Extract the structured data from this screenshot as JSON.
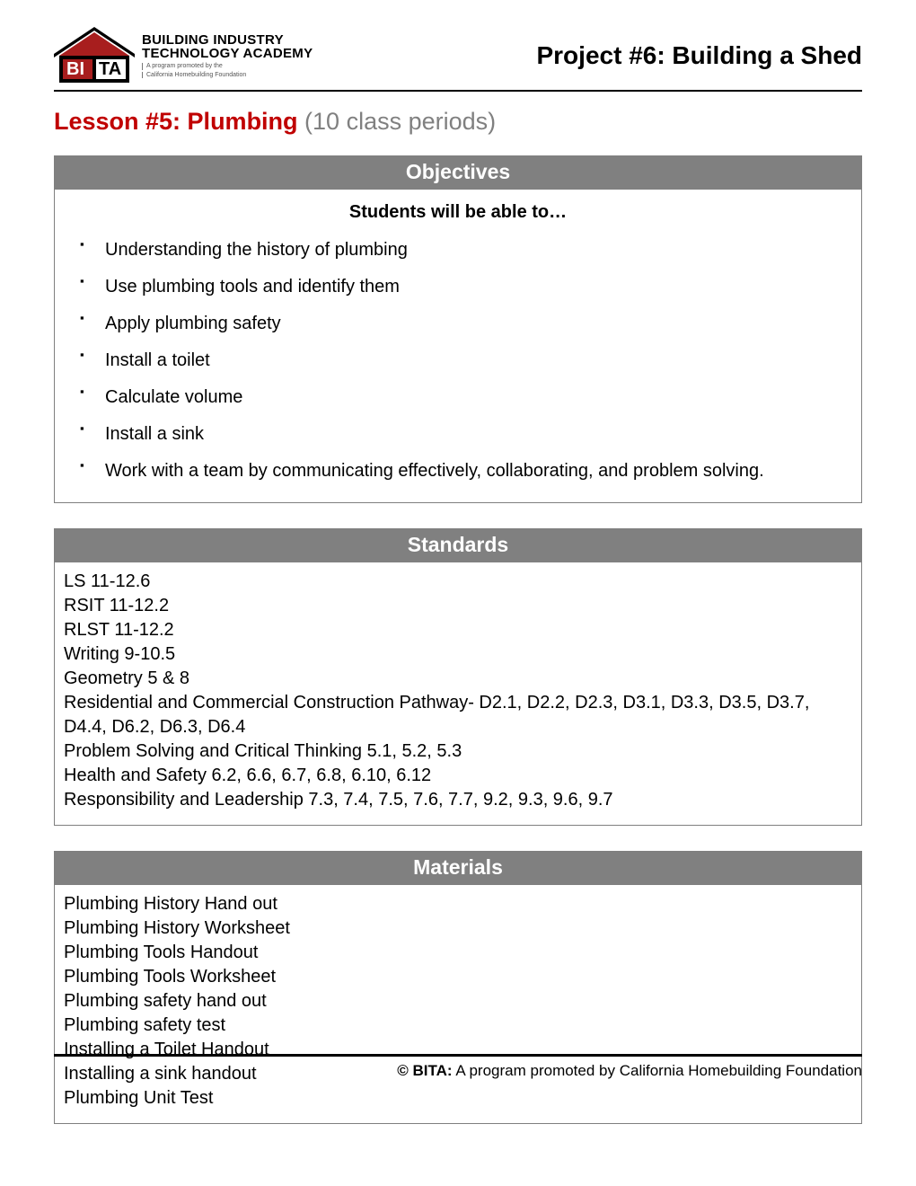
{
  "colors": {
    "accent_red": "#c00000",
    "header_gray": "#808080",
    "text_gray": "#808080",
    "border_gray": "#7f7f7f",
    "black": "#000000",
    "white": "#ffffff"
  },
  "typography": {
    "body_family": "Verdana",
    "heading_family": "Arial",
    "project_title_size": 28,
    "lesson_title_size": 27,
    "section_header_size": 23,
    "body_size": 20
  },
  "logo": {
    "line1": "BUILDING INDUSTRY",
    "line2": "TECHNOLOGY ACADEMY",
    "sub1": "A program promoted by the",
    "sub2": "California Homebuilding Foundation"
  },
  "header": {
    "project_title": "Project #6: Building a Shed"
  },
  "lesson": {
    "prefix": "Lesson #5: Plumbing",
    "suffix": " (10 class periods)"
  },
  "sections": {
    "objectives": {
      "title": "Objectives",
      "subhead": "Students will be able to…",
      "items": [
        "Understanding the history of plumbing",
        "Use plumbing tools and identify them",
        "Apply plumbing safety",
        "Install a toilet",
        "Calculate volume",
        "Install a sink",
        "Work with a team by communicating effectively, collaborating, and problem solving."
      ]
    },
    "standards": {
      "title": "Standards",
      "lines": [
        "LS 11-12.6",
        "RSIT 11-12.2",
        "RLST 11-12.2",
        "Writing 9-10.5",
        "Geometry 5 & 8",
        "Residential and Commercial Construction Pathway- D2.1, D2.2, D2.3, D3.1, D3.3, D3.5, D3.7, D4.4, D6.2, D6.3, D6.4",
        "Problem Solving and Critical Thinking 5.1, 5.2, 5.3",
        "Health and Safety 6.2, 6.6, 6.7, 6.8, 6.10, 6.12",
        "Responsibility and Leadership 7.3, 7.4, 7.5, 7.6, 7.7, 9.2, 9.3, 9.6, 9.7"
      ]
    },
    "materials": {
      "title": "Materials",
      "lines": [
        "Plumbing History Hand out",
        "Plumbing History Worksheet",
        "Plumbing Tools Handout",
        "Plumbing Tools Worksheet",
        "Plumbing safety hand out",
        "Plumbing safety test",
        "Installing a Toilet Handout",
        "Installing a sink handout",
        "Plumbing Unit Test"
      ]
    }
  },
  "footer": {
    "bold": "© BITA:",
    "rest": " A program promoted by California Homebuilding Foundation"
  }
}
